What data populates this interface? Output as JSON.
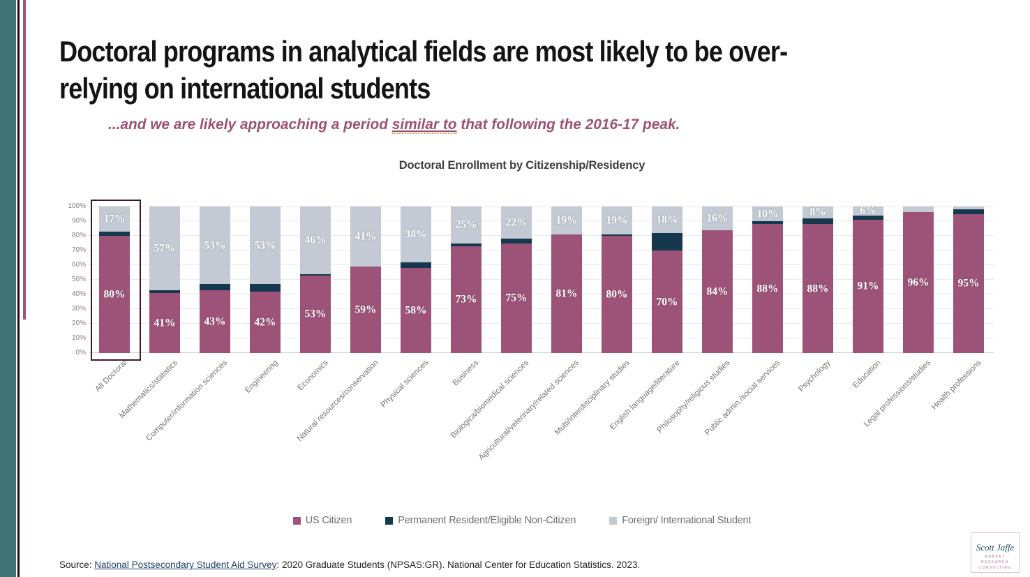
{
  "slide": {
    "title_line1": "Doctoral programs in analytical fields are most likely to be over-",
    "title_line2": "relying on international students",
    "subtitle_prefix": "...and we are likely approaching a period ",
    "subtitle_highlight": "similar to",
    "subtitle_suffix": " that following the 2016-17 peak.",
    "source_prefix": "Source: ",
    "source_link": "National Postsecondary Student Aid Survey",
    "source_suffix": ": 2020 Graduate Students (NPSAS:GR). National Center for Education Statistics. 2023."
  },
  "logo": {
    "signature": "Scott Jaffe",
    "caption_line1": "MARKET",
    "caption_line2": "RESEARCH",
    "caption_line3": "CONSULTING"
  },
  "colors": {
    "sidebar_teal": "#3f7175",
    "accent_maroon": "#9b5677",
    "subtitle_maroon": "#9c5276",
    "highlight_border": "#40162e",
    "link_navy": "#1e3f5f"
  },
  "chart_data": {
    "type": "bar",
    "variant": "stacked-100-percent",
    "title": "Doctoral Enrollment by Citizenship/Residency",
    "grid": true,
    "legend_position": "bottom",
    "ylim": [
      0,
      100
    ],
    "y_ticks": [
      "100%",
      "90%",
      "80%",
      "70%",
      "60%",
      "50%",
      "40%",
      "30%",
      "20%",
      "10%",
      "0%"
    ],
    "highlight_category": "All Doctoral",
    "highlight_category_index": 0,
    "categories": [
      "All Doctoral",
      "Mathematics/statistics",
      "Computer/information sciences",
      "Engineering",
      "Economics",
      "Natural resources/conservation",
      "Physical sciences",
      "Business",
      "Biologica/biomedical sciences",
      "Agricultural/veterinary/related sciences",
      "Multi/interdisciplinary studies",
      "English language/literature",
      "Philosophy/religious studies",
      "Public admin./social services",
      "Psychology",
      "Education",
      "Legal professions/studies",
      "Health professions"
    ],
    "series": [
      {
        "name": "US Citizen",
        "color": "#9d5378",
        "values": [
          80,
          41,
          43,
          42,
          53,
          59,
          58,
          73,
          75,
          81,
          80,
          70,
          84,
          88,
          88,
          91,
          96,
          95
        ],
        "labels": [
          "80%",
          "41%",
          "43%",
          "42%",
          "53%",
          "59%",
          "58%",
          "73%",
          "75%",
          "81%",
          "80%",
          "70%",
          "84%",
          "88%",
          "88%",
          "91%",
          "96%",
          "95%"
        ]
      },
      {
        "name": "Permanent Resident/Eligible Non-Citizen",
        "color": "#16384f",
        "values": [
          3,
          2,
          4,
          5,
          1,
          0,
          4,
          2,
          3,
          0,
          1,
          12,
          0,
          2,
          4,
          3,
          0,
          3
        ],
        "labels": [
          "",
          "",
          "",
          "",
          "",
          "",
          "",
          "",
          "",
          "",
          "",
          "",
          "",
          "",
          "",
          "",
          "",
          ""
        ]
      },
      {
        "name": "Foreign/ International Student",
        "color": "#c3cad3",
        "values": [
          17,
          57,
          53,
          53,
          46,
          41,
          38,
          25,
          22,
          19,
          19,
          18,
          16,
          10,
          8,
          6,
          4,
          2
        ],
        "labels": [
          "17%",
          "57%",
          "53%",
          "53%",
          "46%",
          "41%",
          "38%",
          "25%",
          "22%",
          "19%",
          "19%",
          "18%",
          "16%",
          "10%",
          "8%",
          "6%",
          "",
          ""
        ]
      }
    ]
  }
}
